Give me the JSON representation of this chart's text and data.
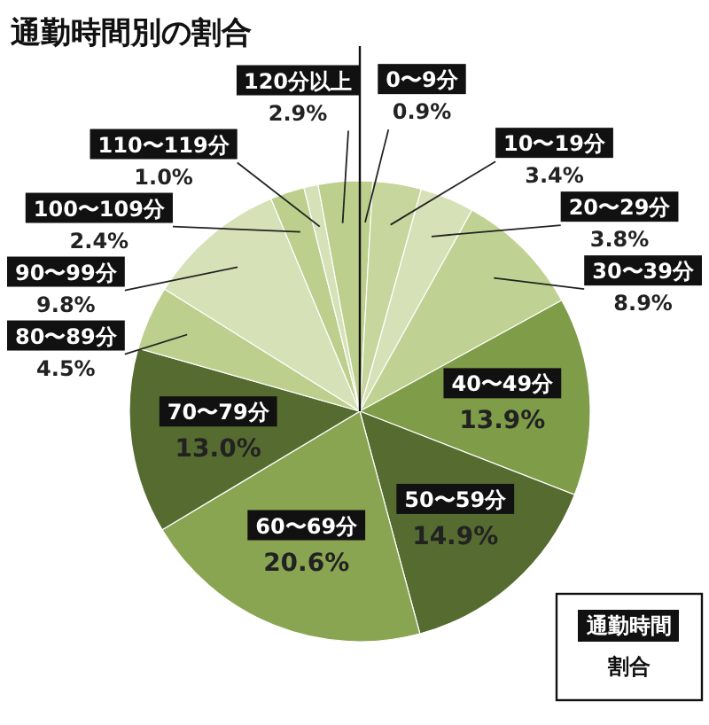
{
  "chart_data": {
    "type": "pie",
    "title": "通勤時間別の割合",
    "categories": [
      "0〜9分",
      "10〜19分",
      "20〜29分",
      "30〜39分",
      "40〜49分",
      "50〜59分",
      "60〜69分",
      "70〜79分",
      "80〜89分",
      "90〜99分",
      "100〜109分",
      "110〜119分",
      "120分以上"
    ],
    "values": [
      0.9,
      3.4,
      3.8,
      8.9,
      13.9,
      14.9,
      20.6,
      13.0,
      4.5,
      9.8,
      2.4,
      1.0,
      2.9
    ],
    "value_labels": [
      "0.9%",
      "3.4%",
      "3.8%",
      "8.9%",
      "13.9%",
      "14.9%",
      "20.6%",
      "13.0%",
      "4.5%",
      "9.8%",
      "2.4%",
      "1.0%",
      "2.9%"
    ],
    "colors": [
      "#bccf8c",
      "#c6d69c",
      "#d6e1b8",
      "#c0d293",
      "#7f9c48",
      "#566b30",
      "#8aa552",
      "#566b30",
      "#bccf8c",
      "#d6e1b8",
      "#bccf8c",
      "#d6e1b8",
      "#bccf8c"
    ],
    "annotations": [
      "通勤時間",
      "割合"
    ]
  }
}
